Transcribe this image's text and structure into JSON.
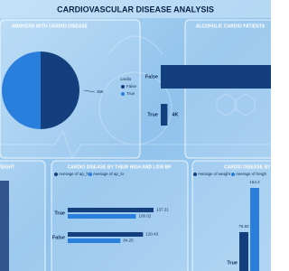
{
  "title": "CARDIOVASCULAR DISEASE ANALYSIS",
  "chart_data": [
    {
      "type": "pie",
      "title": "SMOKERS WITH CARDIO DISEASE",
      "legend_title": "cardio",
      "categories": [
        "False",
        "True"
      ],
      "values": [
        35000,
        35000
      ],
      "value_labels": [
        "35K",
        null
      ],
      "colors": [
        "#143f7e",
        "#2a7fdc"
      ]
    },
    {
      "type": "hbar",
      "title": "ALCOHOLIC CARDIO PATIENTS",
      "categories": [
        "False",
        "True"
      ],
      "values": [
        66000,
        4000
      ],
      "value_labels": [
        null,
        "4K"
      ],
      "color": "#143f7e"
    },
    {
      "type": "column",
      "title": "WEIGHT"
    },
    {
      "type": "grouped_hbar",
      "title": "CARDIO DISEASE BY THEIR HIGH AND LOW BP",
      "categories": [
        "True",
        "False"
      ],
      "series": [
        {
          "name": "Average of ap_hi",
          "color": "#143f7e",
          "values": [
            137.21,
            120.43
          ]
        },
        {
          "name": "Average of ap_lo",
          "color": "#2a7fdc",
          "values": [
            109.02,
            84.25
          ]
        }
      ]
    },
    {
      "type": "grouped_column",
      "title": "CARDIO DISEASE BY",
      "categories": [
        "True"
      ],
      "series": [
        {
          "name": "Average of weight",
          "color": "#143f7e",
          "values": [
            76.82
          ]
        },
        {
          "name": "Average of heigh",
          "color": "#2a7fdc",
          "values": [
            164.2
          ]
        }
      ]
    }
  ]
}
